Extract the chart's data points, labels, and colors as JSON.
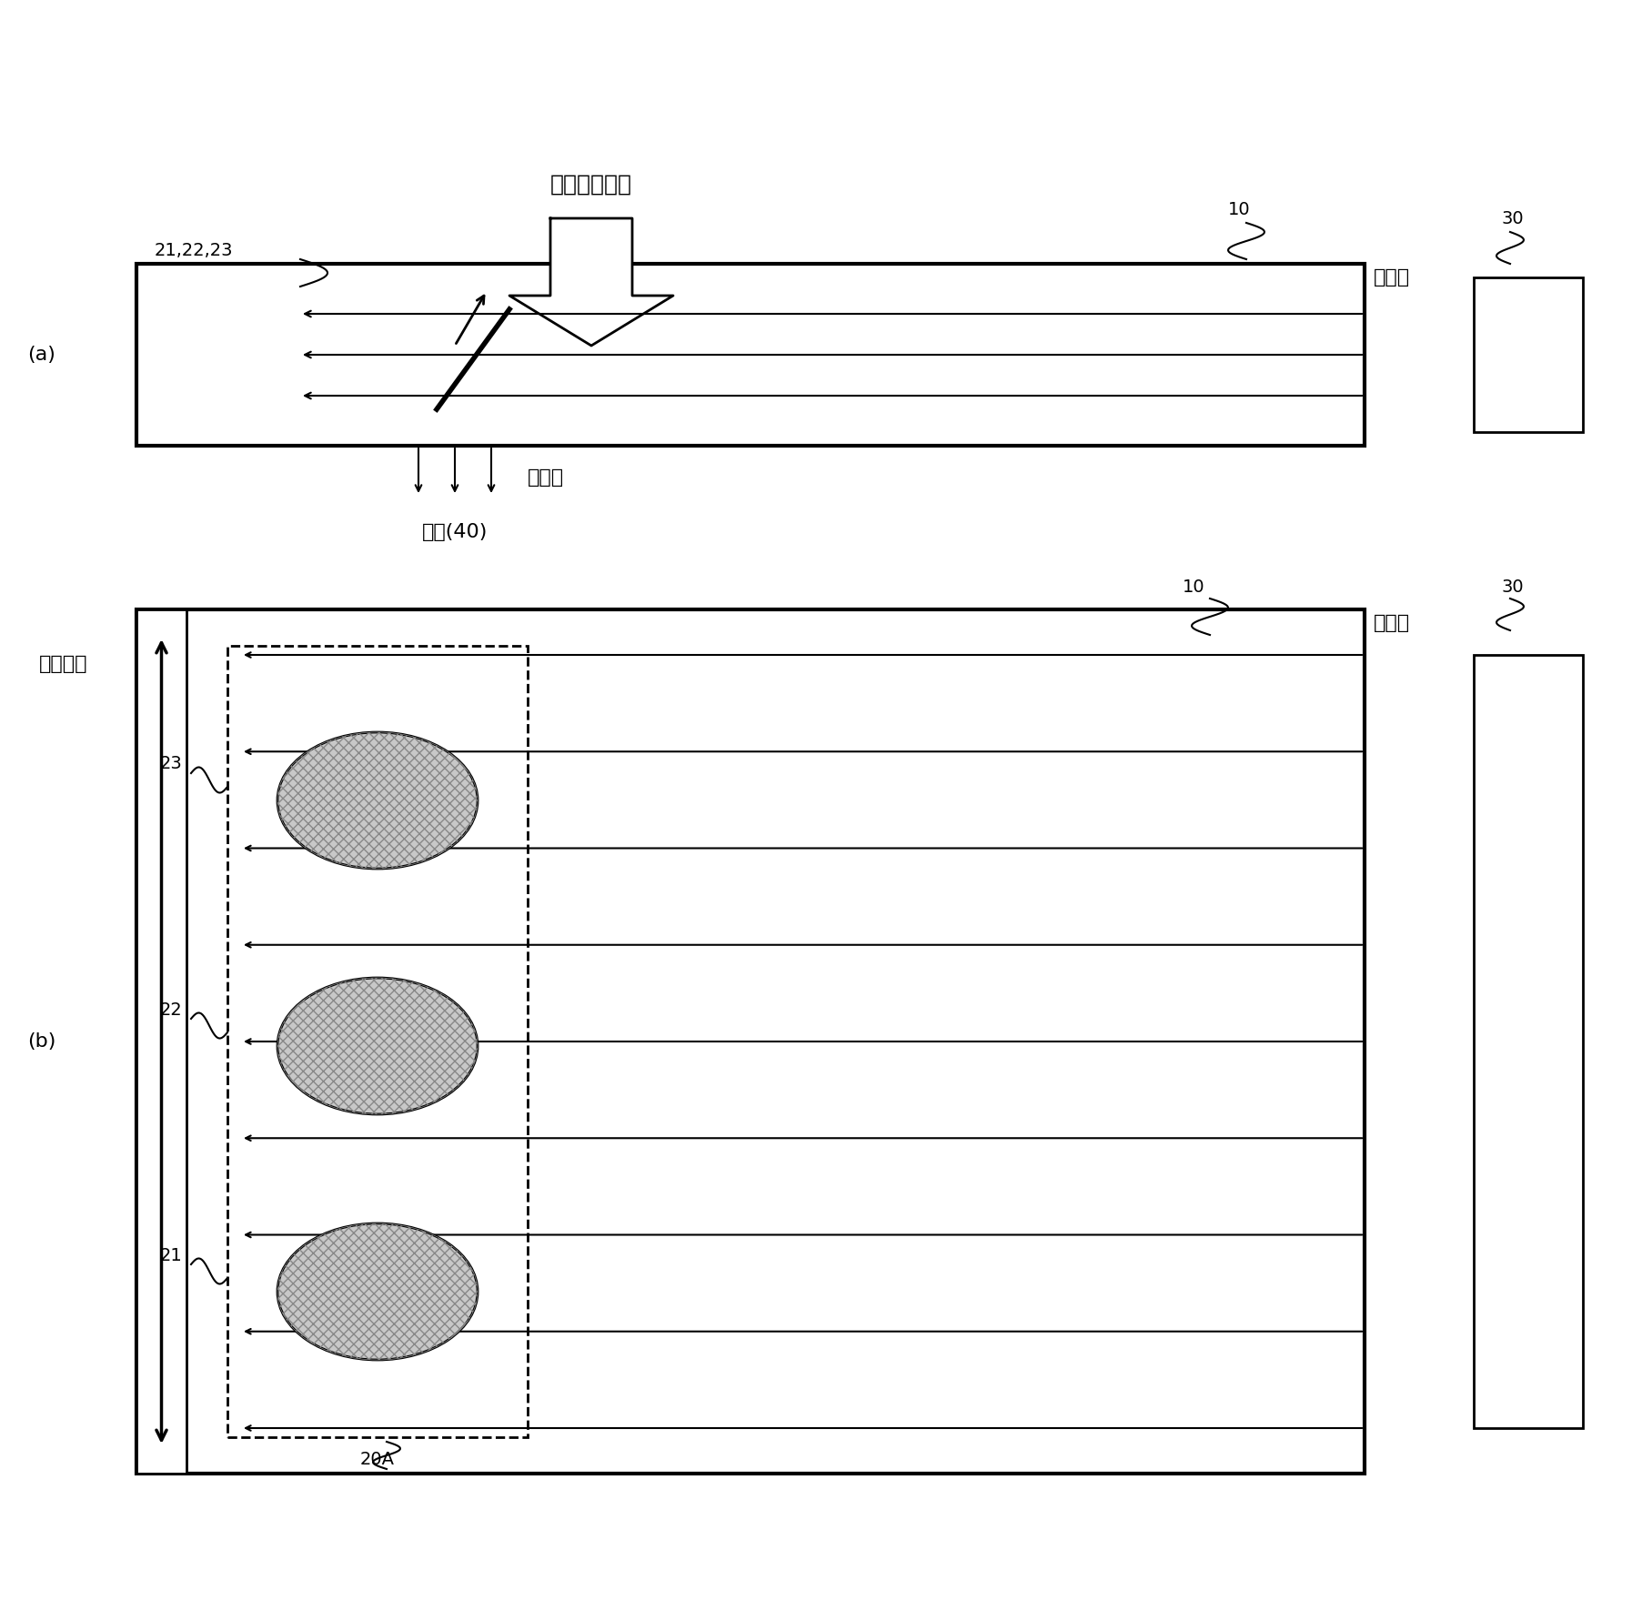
{
  "bg_color": "#ffffff",
  "line_color": "#000000",
  "label_color": "#4a7c4e",
  "gray_color": "#aaaaaa",
  "title_top": "现实世界影像",
  "label_10a": "10",
  "label_30a": "30",
  "label_21_22_23": "21,22,23",
  "label_ru_a": "入射光",
  "label_chu": "出射光",
  "label_tong": "瞳孔(40)",
  "label_10b": "10",
  "label_30b": "30",
  "label_ru_b": "入射光",
  "label_di_yi": "第一方向",
  "label_21": "21",
  "label_22": "22",
  "label_23": "23",
  "label_20A": "20A",
  "label_a": "(a)",
  "label_b": "(b)"
}
